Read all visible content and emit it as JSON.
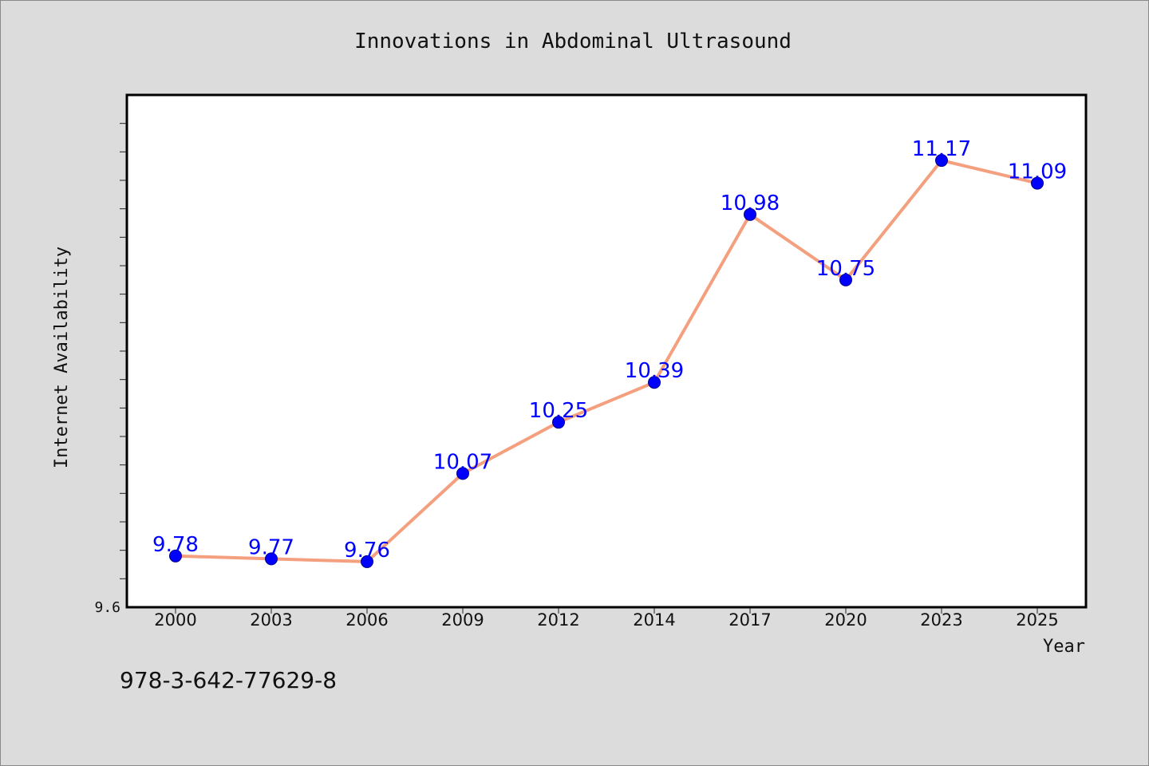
{
  "chart_data": {
    "type": "line",
    "title": "Innovations in Abdominal Ultrasound",
    "xlabel": "Year",
    "ylabel": "Internet Availability",
    "categories": [
      "2000",
      "2003",
      "2006",
      "2009",
      "2012",
      "2014",
      "2017",
      "2020",
      "2023",
      "2025"
    ],
    "values": [
      9.78,
      9.77,
      9.76,
      10.07,
      10.25,
      10.39,
      10.98,
      10.75,
      11.17,
      11.09
    ],
    "data_labels": [
      "9.78",
      "9.77",
      "9.76",
      "10.07",
      "10.25",
      "10.39",
      "10.98",
      "10.75",
      "11.17",
      "11.09"
    ],
    "ylim": [
      9.6,
      11.4
    ],
    "y_tick_labels": [
      "9.6"
    ],
    "grid": false,
    "line_color": "#f4a07f",
    "marker_color": "#0000ff",
    "label_color": "#0000ff"
  },
  "footer_text": "978-3-642-77629-8"
}
